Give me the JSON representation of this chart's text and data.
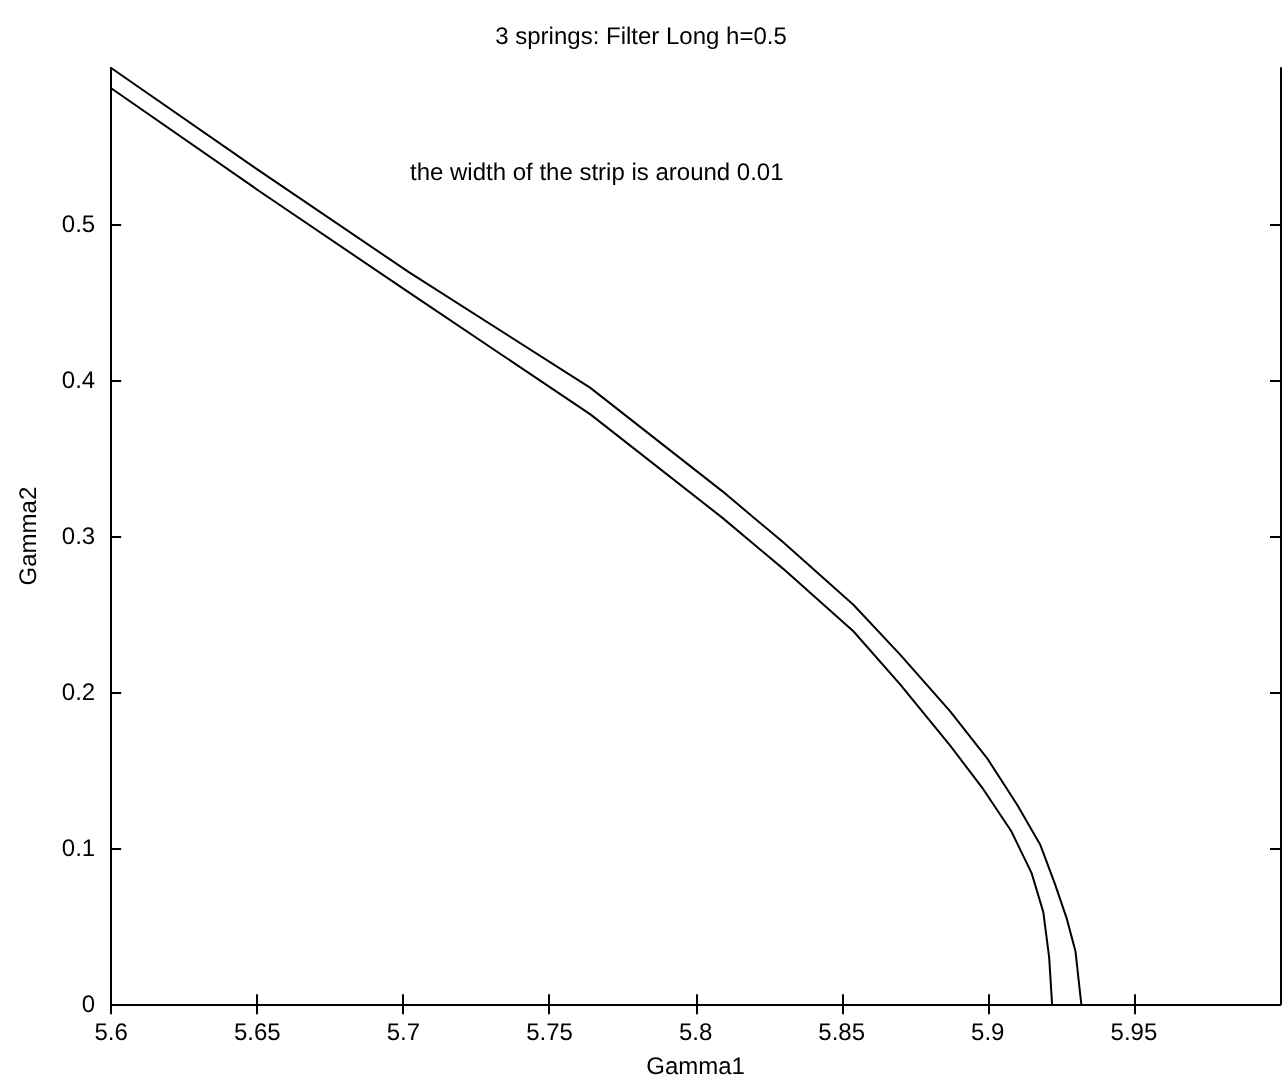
{
  "chart_data": {
    "type": "line",
    "title": "3 springs: Filter Long h=0.5",
    "xlabel": "Gamma1",
    "ylabel": "Gamma2",
    "annotations": [
      "the width of the strip is around 0.01"
    ],
    "series": [
      {
        "color": "#000000",
        "x": [
          5.6,
          5.65,
          5.702,
          5.764,
          5.809,
          5.83,
          5.854,
          5.87,
          5.887,
          5.9,
          5.91,
          5.918,
          5.923,
          5.927,
          5.93,
          5.932
        ],
        "values": [
          0.6,
          0.535,
          0.469,
          0.395,
          0.329,
          0.296,
          0.256,
          0.224,
          0.188,
          0.157,
          0.128,
          0.102,
          0.077,
          0.055,
          0.034,
          0
        ]
      },
      {
        "color": "#000000",
        "x": [
          5.6,
          5.65,
          5.702,
          5.764,
          5.809,
          5.83,
          5.854,
          5.87,
          5.887,
          5.898,
          5.908,
          5.915,
          5.919,
          5.921,
          5.922
        ],
        "values": [
          0.587,
          0.522,
          0.456,
          0.378,
          0.312,
          0.279,
          0.239,
          0.205,
          0.166,
          0.139,
          0.111,
          0.084,
          0.059,
          0.03,
          0
        ]
      }
    ],
    "xlim": [
      5.6,
      6.0
    ],
    "xticks": [
      5.6,
      5.65,
      5.7,
      5.75,
      5.8,
      5.85,
      5.9,
      5.95
    ],
    "ylim": [
      0,
      0.6
    ],
    "yticks": [
      0,
      0.1,
      0.2,
      0.3,
      0.4,
      0.5
    ],
    "grid": false,
    "marker": "none",
    "line_style": "solid"
  }
}
